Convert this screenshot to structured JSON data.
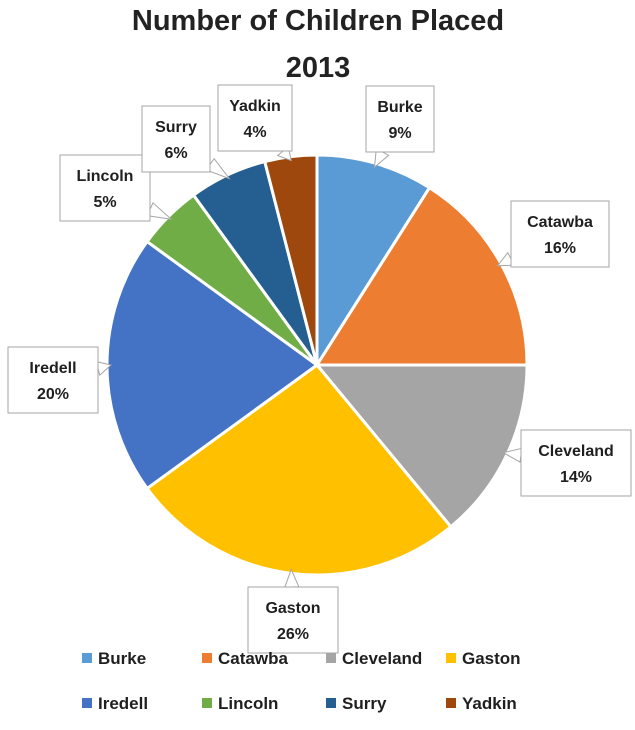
{
  "chart_data": {
    "type": "pie",
    "title": "Number of Children Placed",
    "subtitle": "2013",
    "series": [
      {
        "category": "Burke",
        "percent_label": "9%",
        "value": 9,
        "color": "#5B9BD5"
      },
      {
        "category": "Catawba",
        "percent_label": "16%",
        "value": 16,
        "color": "#ED7D31"
      },
      {
        "category": "Cleveland",
        "percent_label": "14%",
        "value": 14,
        "color": "#A5A5A5"
      },
      {
        "category": "Gaston",
        "percent_label": "26%",
        "value": 26,
        "color": "#FFC000"
      },
      {
        "category": "Iredell",
        "percent_label": "20%",
        "value": 20,
        "color": "#4472C4"
      },
      {
        "category": "Lincoln",
        "percent_label": "5%",
        "value": 5,
        "color": "#70AD47"
      },
      {
        "category": "Surry",
        "percent_label": "6%",
        "value": 6,
        "color": "#255E91"
      },
      {
        "category": "Yadkin",
        "percent_label": "4%",
        "value": 4,
        "color": "#9E480E"
      }
    ],
    "legend_position": "bottom",
    "start_angle_deg": 0,
    "direction": "clockwise"
  }
}
